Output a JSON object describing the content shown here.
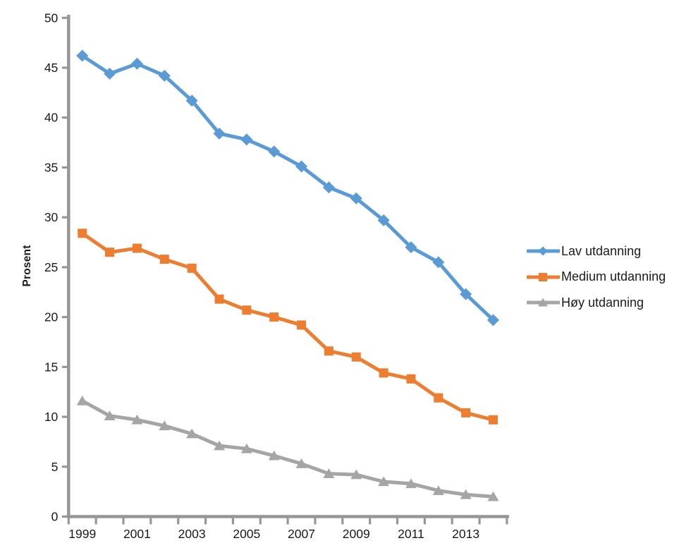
{
  "chart_data": {
    "type": "line",
    "title": "",
    "xlabel": "",
    "ylabel": "Prosent",
    "x": [
      1999,
      2000,
      2001,
      2002,
      2003,
      2004,
      2005,
      2006,
      2007,
      2008,
      2009,
      2010,
      2011,
      2012,
      2013,
      2014
    ],
    "x_tick_labels": [
      "1999",
      "2001",
      "2003",
      "2005",
      "2007",
      "2009",
      "2011",
      "2013"
    ],
    "ylim": [
      0,
      50
    ],
    "y_tick_step": 5,
    "grid": false,
    "legend_position": "right",
    "background_color": "#ffffff",
    "axis_color": "#969696",
    "text_color": "#1a1a1a",
    "series": [
      {
        "name": "Lav utdanning",
        "color": "#5B9BD5",
        "marker": "diamond",
        "values": [
          46.2,
          44.4,
          45.4,
          44.2,
          41.7,
          38.4,
          37.8,
          36.6,
          35.1,
          33.0,
          31.9,
          29.7,
          27.0,
          25.5,
          22.3,
          19.7
        ]
      },
      {
        "name": "Medium utdanning",
        "color": "#ED7D31",
        "marker": "square",
        "values": [
          28.4,
          26.5,
          26.9,
          25.8,
          24.9,
          21.8,
          20.7,
          20.0,
          19.2,
          16.6,
          16.0,
          14.4,
          13.8,
          11.9,
          10.4,
          9.7
        ]
      },
      {
        "name": "Høy utdanning",
        "color": "#A5A5A5",
        "marker": "triangle",
        "values": [
          11.6,
          10.1,
          9.7,
          9.1,
          8.3,
          7.1,
          6.8,
          6.1,
          5.3,
          4.3,
          4.2,
          3.5,
          3.3,
          2.6,
          2.2,
          2.0
        ]
      }
    ]
  }
}
